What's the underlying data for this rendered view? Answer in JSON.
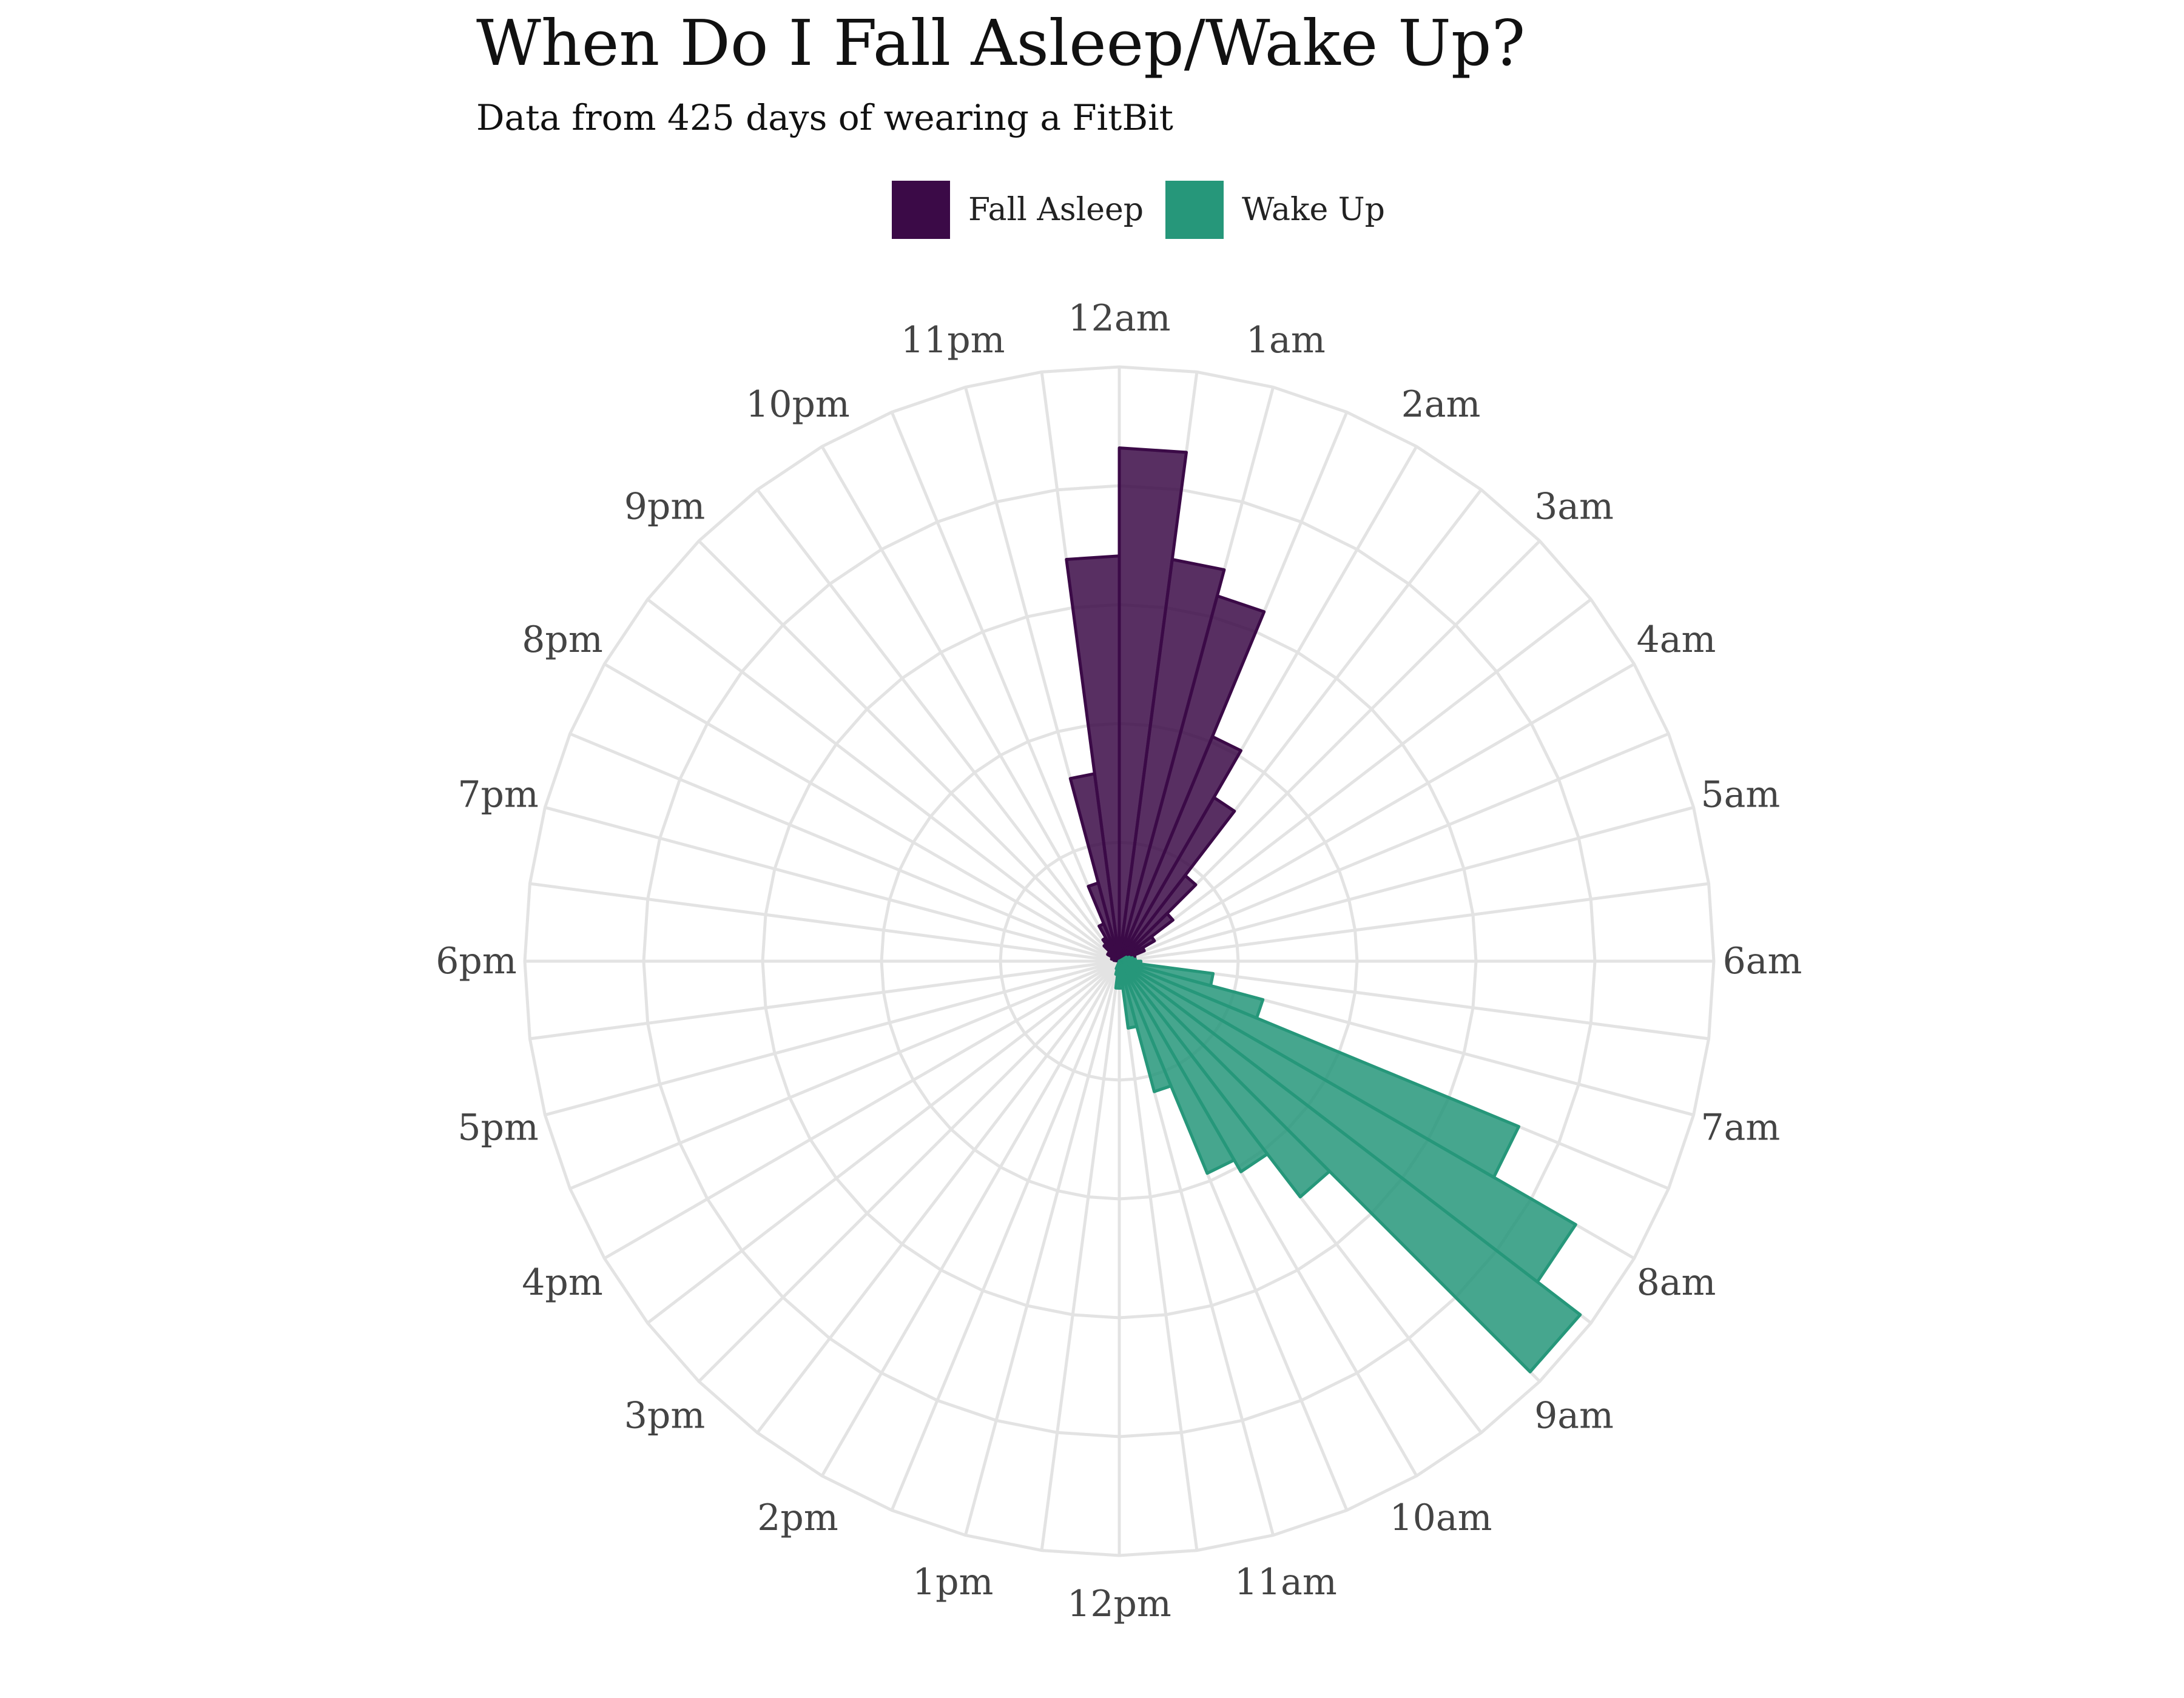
{
  "title": "When Do I Fall Asleep/Wake Up?",
  "subtitle": "Data from 425 days of wearing a FitBit",
  "legend": {
    "items": [
      {
        "label": "Fall Asleep",
        "color": "#3b0a47"
      },
      {
        "label": "Wake Up",
        "color": "#26977a"
      }
    ]
  },
  "chart_data": {
    "type": "bar",
    "coordinate_system": "polar",
    "subtype": "rose",
    "bin_minutes": 30,
    "rlim": [
      0,
      22
    ],
    "grid": true,
    "legend_position": "top",
    "hour_labels": [
      "12am",
      "1am",
      "2am",
      "3am",
      "4am",
      "5am",
      "6am",
      "7am",
      "8am",
      "9am",
      "10am",
      "11am",
      "12pm",
      "1pm",
      "2pm",
      "3pm",
      "4pm",
      "5pm",
      "6pm",
      "7pm",
      "8pm",
      "9pm",
      "10pm",
      "11pm"
    ],
    "series": [
      {
        "name": "Fall Asleep",
        "color": "#3b0a47",
        "bins": [
          {
            "start_hour": 0.0,
            "count": 19.0
          },
          {
            "start_hour": 0.5,
            "count": 15.0
          },
          {
            "start_hour": 1.0,
            "count": 14.0
          },
          {
            "start_hour": 1.5,
            "count": 9.0
          },
          {
            "start_hour": 2.0,
            "count": 7.0
          },
          {
            "start_hour": 2.5,
            "count": 4.0
          },
          {
            "start_hour": 3.0,
            "count": 2.5
          },
          {
            "start_hour": 3.5,
            "count": 1.5
          },
          {
            "start_hour": 4.0,
            "count": 1.0
          },
          {
            "start_hour": 4.5,
            "count": 0.6
          },
          {
            "start_hour": 5.0,
            "count": 0.4
          },
          {
            "start_hour": 5.5,
            "count": 0.2
          },
          {
            "start_hour": 6.0,
            "count": 0.2
          },
          {
            "start_hour": 18.5,
            "count": 0.2
          },
          {
            "start_hour": 19.0,
            "count": 0.3
          },
          {
            "start_hour": 19.5,
            "count": 0.3
          },
          {
            "start_hour": 20.0,
            "count": 0.5
          },
          {
            "start_hour": 20.5,
            "count": 0.5
          },
          {
            "start_hour": 21.0,
            "count": 0.8
          },
          {
            "start_hour": 21.5,
            "count": 1.0
          },
          {
            "start_hour": 22.0,
            "count": 1.5
          },
          {
            "start_hour": 22.5,
            "count": 3.0
          },
          {
            "start_hour": 23.0,
            "count": 7.0
          },
          {
            "start_hour": 23.5,
            "count": 15.0
          }
        ]
      },
      {
        "name": "Wake Up",
        "color": "#26977a",
        "bins": [
          {
            "start_hour": 4.0,
            "count": 0.3
          },
          {
            "start_hour": 4.5,
            "count": 0.4
          },
          {
            "start_hour": 5.0,
            "count": 0.5
          },
          {
            "start_hour": 5.5,
            "count": 0.6
          },
          {
            "start_hour": 6.0,
            "count": 0.8
          },
          {
            "start_hour": 6.5,
            "count": 3.5
          },
          {
            "start_hour": 7.0,
            "count": 5.5
          },
          {
            "start_hour": 7.5,
            "count": 16.0
          },
          {
            "start_hour": 8.0,
            "count": 19.5
          },
          {
            "start_hour": 8.5,
            "count": 21.5
          },
          {
            "start_hour": 9.0,
            "count": 11.0
          },
          {
            "start_hour": 9.5,
            "count": 9.0
          },
          {
            "start_hour": 10.0,
            "count": 8.5
          },
          {
            "start_hour": 10.5,
            "count": 5.0
          },
          {
            "start_hour": 11.0,
            "count": 2.5
          },
          {
            "start_hour": 11.5,
            "count": 1.0
          },
          {
            "start_hour": 12.0,
            "count": 1.0
          },
          {
            "start_hour": 12.5,
            "count": 0.5
          },
          {
            "start_hour": 13.0,
            "count": 0.3
          }
        ]
      }
    ]
  }
}
